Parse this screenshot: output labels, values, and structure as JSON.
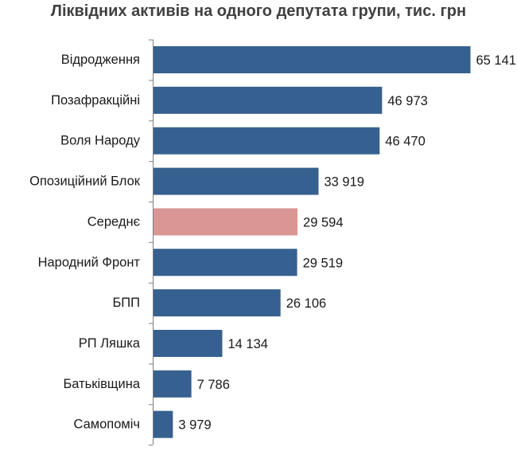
{
  "chart_data": {
    "type": "bar",
    "orientation": "horizontal",
    "title": "Ліквідних активів на одного депутата групи, тис. грн",
    "xlabel": "",
    "ylabel": "",
    "xlim": [
      0,
      68000
    ],
    "grid": false,
    "legend": "none",
    "categories": [
      "Відродження",
      "Позафракційні",
      "Воля Народу",
      "Опозиційний Блок",
      "Середнє",
      "Народний Фронт",
      "БПП",
      "РП Ляшка",
      "Батьківщина",
      "Самопоміч"
    ],
    "values": [
      65141,
      46973,
      46470,
      33919,
      29594,
      29519,
      26106,
      14134,
      7786,
      3979
    ],
    "value_labels": [
      "65 141",
      "46 973",
      "46 470",
      "33 919",
      "29 594",
      "29 519",
      "26 106",
      "14 134",
      "7 786",
      "3 979"
    ],
    "colors": {
      "default": "#36608f",
      "highlight": "#d99694",
      "axis": "#7f7f7f"
    },
    "highlight_category": "Середнє"
  }
}
